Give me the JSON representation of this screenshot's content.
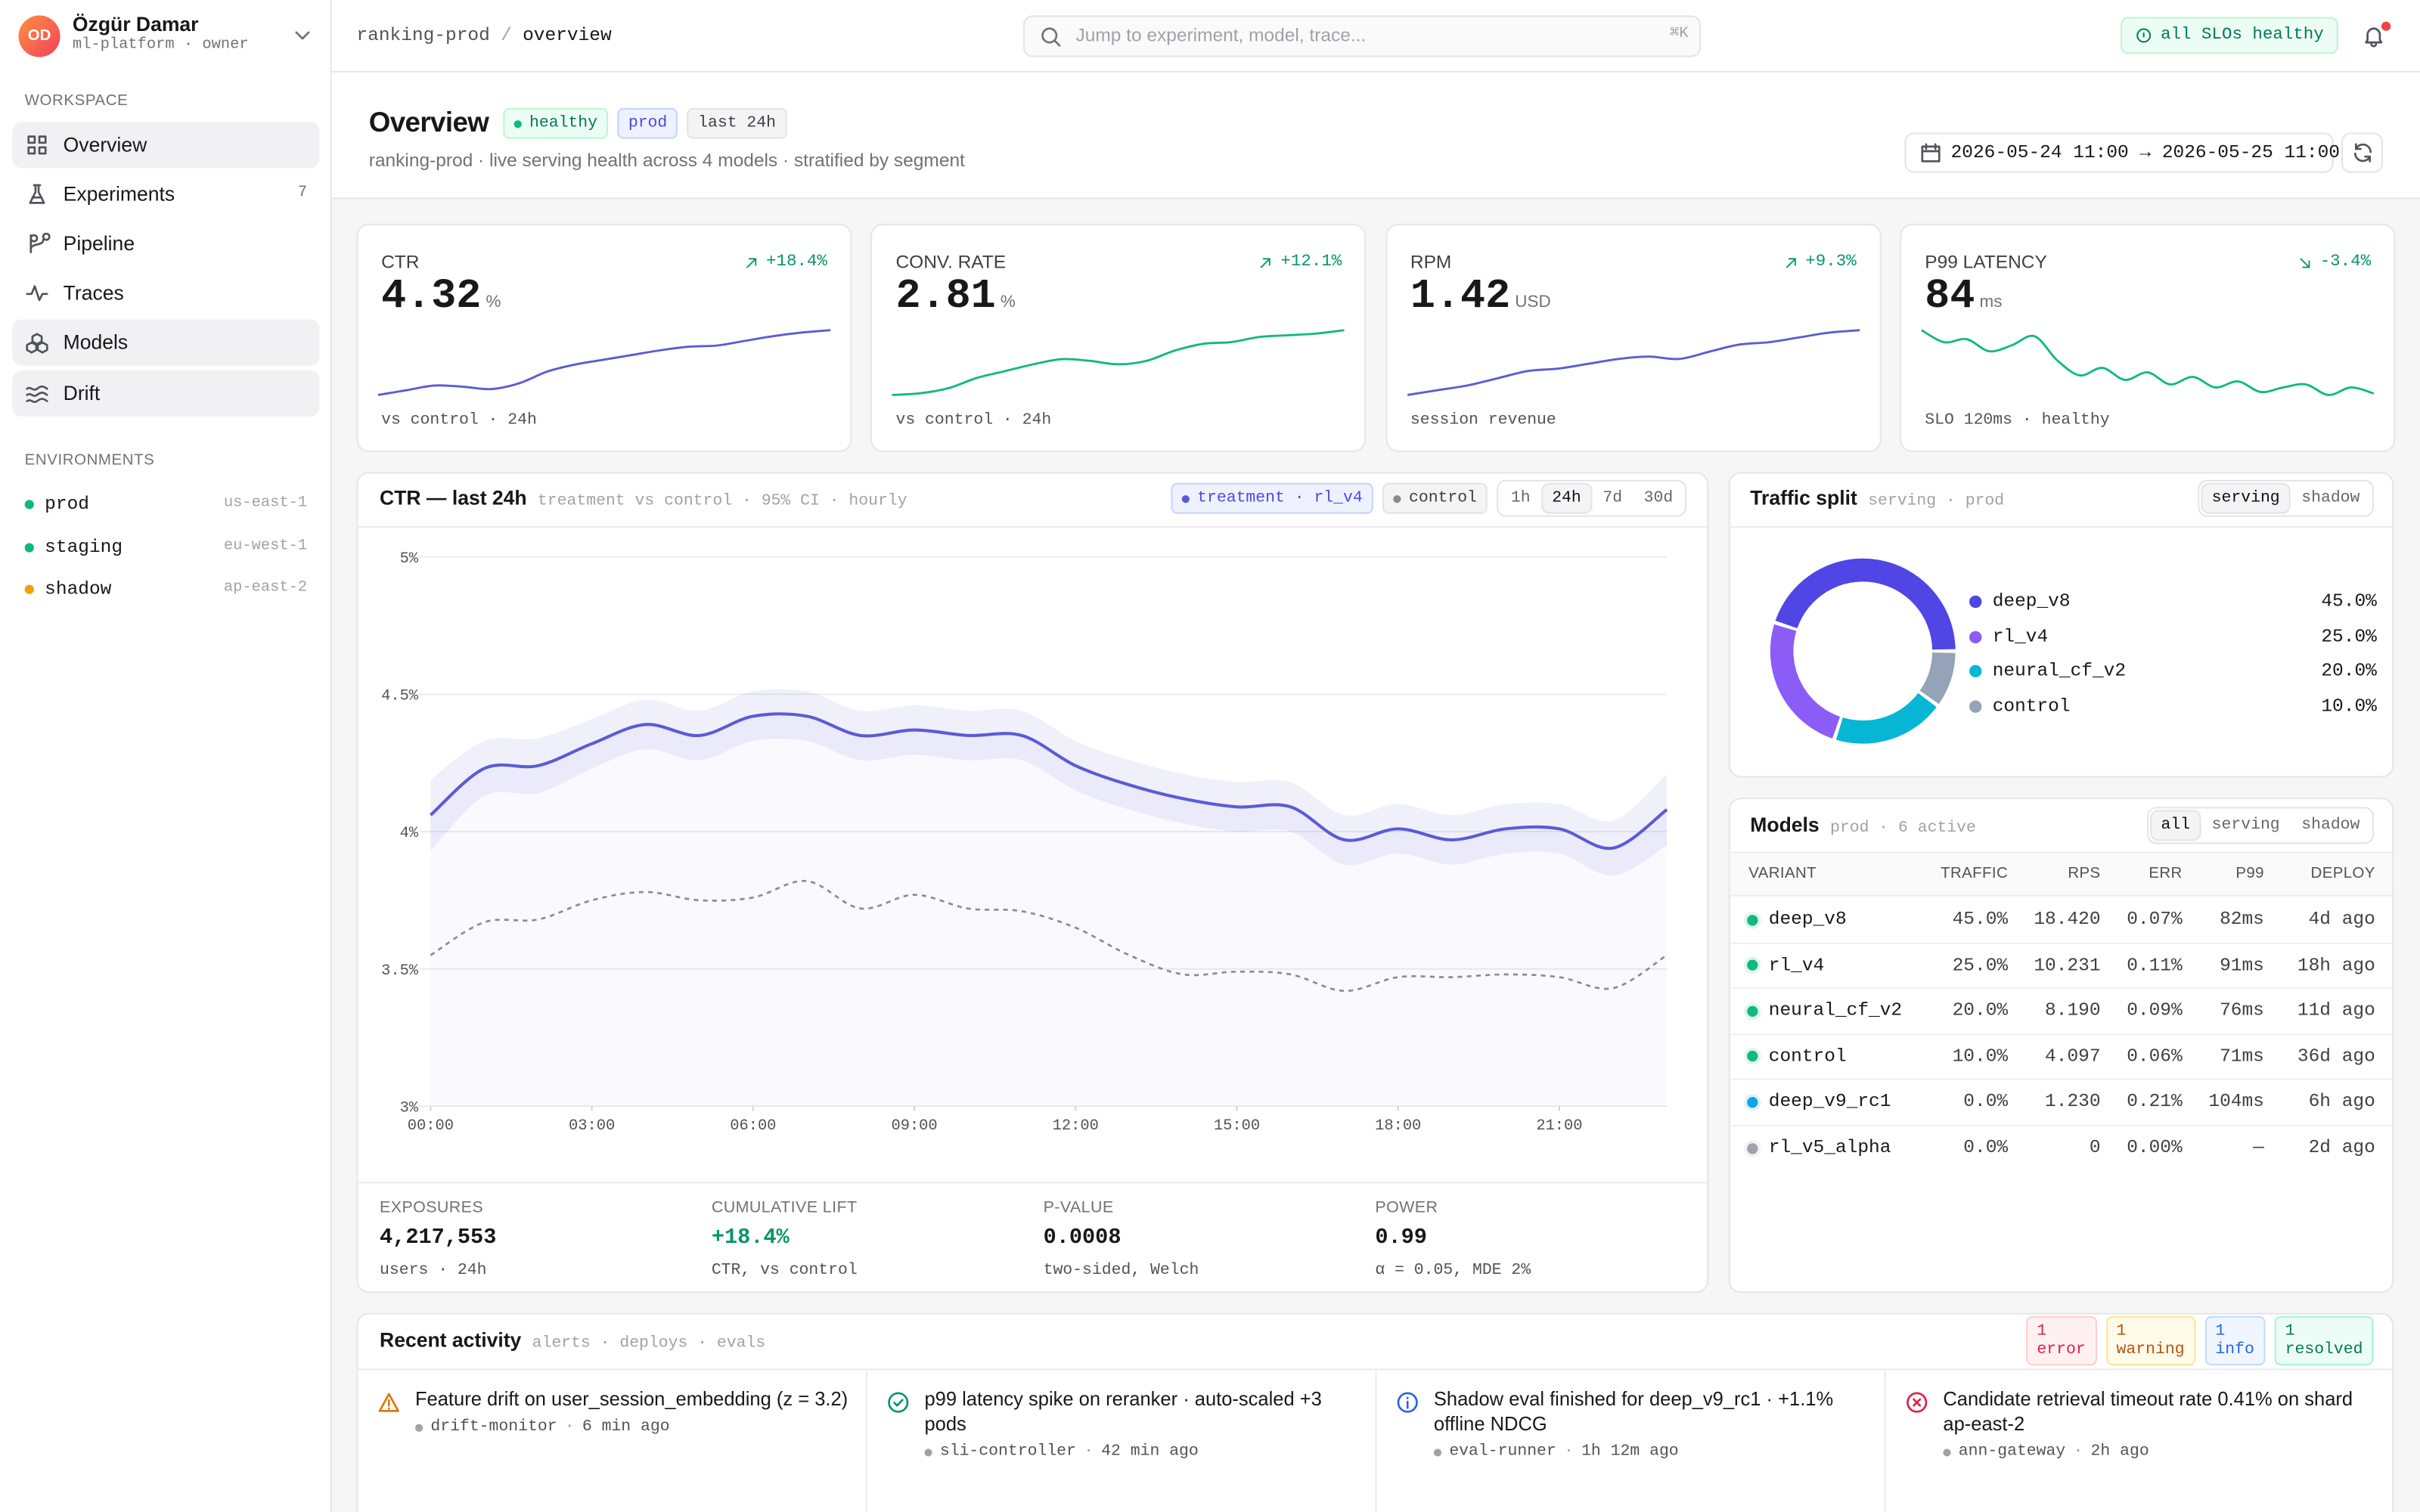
{
  "user": {
    "initials": "OD",
    "name": "Özgür Damar",
    "role": "ml-platform · owner"
  },
  "sidebar": {
    "workspace_label": "WORKSPACE",
    "nav": [
      {
        "label": "Overview",
        "active": true
      },
      {
        "label": "Experiments",
        "count": 7
      },
      {
        "label": "Pipeline"
      },
      {
        "label": "Traces"
      },
      {
        "label": "Models",
        "active": true
      },
      {
        "label": "Drift",
        "active": true
      }
    ],
    "environments_label": "ENVIRONMENTS",
    "environments": [
      {
        "name": "prod",
        "region": "us-east-1",
        "color": "#10b981"
      },
      {
        "name": "staging",
        "region": "eu-west-1",
        "color": "#10b981"
      },
      {
        "name": "shadow",
        "region": "ap-east-2",
        "color": "#f59e0b"
      }
    ]
  },
  "topbar": {
    "breadcrumb": [
      "ranking-prod",
      "overview"
    ],
    "separator": "/",
    "search_placeholder": "Jump to experiment, model, trace...",
    "search_shortcut": "⌘K",
    "status": "all SLOs healthy"
  },
  "header": {
    "title": "Overview",
    "badges": [
      {
        "label": "healthy",
        "kind": "ok"
      },
      {
        "label": "prod",
        "kind": "env"
      },
      {
        "label": "last 24h",
        "kind": "neutral"
      }
    ],
    "subtitle": "ranking-prod · live serving health across 4 models · stratified by segment",
    "date_range": "2026-05-24 11:00 → 2026-05-25 11:00"
  },
  "kpis": [
    {
      "label": "CTR",
      "value": 4.32,
      "unit": "%",
      "delta": "+18.4%",
      "trend": "up",
      "footnote": "vs control · 24h",
      "color": "#5b5bd6",
      "spark": [
        3.62,
        3.66,
        3.7,
        3.69,
        3.67,
        3.72,
        3.82,
        3.88,
        3.92,
        3.96,
        4.0,
        4.03,
        4.04,
        4.08,
        4.12,
        4.15,
        4.17
      ]
    },
    {
      "label": "CONV. RATE",
      "value": 2.81,
      "unit": "%",
      "delta": "+12.1%",
      "trend": "up",
      "footnote": "vs control · 24h",
      "color": "#10b981",
      "spark": [
        2.42,
        2.43,
        2.46,
        2.52,
        2.56,
        2.6,
        2.63,
        2.62,
        2.6,
        2.62,
        2.68,
        2.72,
        2.73,
        2.76,
        2.77,
        2.78,
        2.8
      ]
    },
    {
      "label": "RPM",
      "value": 1.42,
      "unit": "USD",
      "delta": "+9.3%",
      "trend": "up",
      "footnote": "session revenue",
      "color": "#5b5bd6",
      "spark": [
        1.2,
        1.22,
        1.24,
        1.27,
        1.3,
        1.31,
        1.33,
        1.35,
        1.36,
        1.35,
        1.38,
        1.41,
        1.42,
        1.44,
        1.46,
        1.47
      ]
    },
    {
      "label": "P99 LATENCY",
      "value": 84,
      "unit": "ms",
      "delta": "-3.4%",
      "trend": "down",
      "footnote": "SLO 120ms · healthy",
      "color": "#10b981",
      "spark": [
        118,
        110,
        112,
        104,
        108,
        114,
        98,
        88,
        93,
        85,
        90,
        82,
        87,
        80,
        84,
        77,
        80,
        82,
        75,
        80,
        76
      ]
    }
  ],
  "chart_data": [
    {
      "type": "line",
      "title": "CTR — last 24h",
      "subtitle": "treatment vs control · 95% CI · hourly",
      "ranges": [
        "1h",
        "24h",
        "7d",
        "30d"
      ],
      "selected_range": "24h",
      "x": [
        0,
        1,
        2,
        3,
        4,
        5,
        6,
        7,
        8,
        9,
        10,
        11,
        12,
        13,
        14,
        15,
        16,
        17,
        18,
        19,
        20,
        21,
        22,
        23
      ],
      "xlim": [
        0,
        23
      ],
      "xticks": [
        {
          "value": 0,
          "label": "00:00"
        },
        {
          "value": 3,
          "label": "03:00"
        },
        {
          "value": 6,
          "label": "06:00"
        },
        {
          "value": 9,
          "label": "09:00"
        },
        {
          "value": 12,
          "label": "12:00"
        },
        {
          "value": 15,
          "label": "15:00"
        },
        {
          "value": 18,
          "label": "18:00"
        },
        {
          "value": 21,
          "label": "21:00"
        }
      ],
      "ylim": [
        3,
        5
      ],
      "yticks": [
        {
          "value": 3,
          "label": "3%"
        },
        {
          "value": 3.5,
          "label": "3.5%"
        },
        {
          "value": 4,
          "label": "4%"
        },
        {
          "value": 4.5,
          "label": "4.5%"
        },
        {
          "value": 5,
          "label": "5%"
        }
      ],
      "grid": true,
      "series": [
        {
          "name": "treatment · rl_v4",
          "color": "#5b5bd6",
          "values": [
            4.06,
            4.23,
            4.24,
            4.32,
            4.39,
            4.35,
            4.42,
            4.42,
            4.35,
            4.37,
            4.35,
            4.35,
            4.24,
            4.17,
            4.12,
            4.09,
            4.09,
            3.97,
            4.01,
            3.97,
            4.01,
            4.01,
            3.94,
            4.08
          ],
          "ci_low": [
            3.93,
            4.13,
            4.14,
            4.23,
            4.3,
            4.26,
            4.33,
            4.33,
            4.26,
            4.28,
            4.26,
            4.26,
            4.15,
            4.08,
            4.03,
            4.0,
            4.0,
            3.88,
            3.92,
            3.88,
            3.92,
            3.92,
            3.84,
            3.95
          ],
          "ci_high": [
            4.19,
            4.33,
            4.34,
            4.41,
            4.48,
            4.44,
            4.51,
            4.51,
            4.44,
            4.46,
            4.44,
            4.44,
            4.33,
            4.26,
            4.21,
            4.18,
            4.18,
            4.06,
            4.1,
            4.06,
            4.1,
            4.1,
            4.04,
            4.21
          ]
        },
        {
          "name": "control",
          "color": "#8a8a93",
          "dashed": true,
          "values": [
            3.55,
            3.67,
            3.68,
            3.75,
            3.78,
            3.75,
            3.76,
            3.82,
            3.72,
            3.77,
            3.72,
            3.71,
            3.65,
            3.55,
            3.48,
            3.49,
            3.48,
            3.42,
            3.47,
            3.47,
            3.48,
            3.47,
            3.43,
            3.55
          ]
        }
      ],
      "stats": [
        {
          "label": "EXPOSURES",
          "value": "4,217,553",
          "note": "users · 24h"
        },
        {
          "label": "CUMULATIVE LIFT",
          "value": "+18.4%",
          "note": "CTR, vs control",
          "color": "#059669"
        },
        {
          "label": "P-VALUE",
          "value": "0.0008",
          "note": "two-sided, Welch"
        },
        {
          "label": "POWER",
          "value": "0.99",
          "note": "α = 0.05, MDE 2%"
        }
      ]
    },
    {
      "type": "pie",
      "donut": true,
      "title": "Traffic split",
      "subtitle": "serving · prod",
      "toggle": [
        "serving",
        "shadow"
      ],
      "selected": "serving",
      "categories": [
        "deep_v8",
        "rl_v4",
        "neural_cf_v2",
        "control"
      ],
      "values": [
        45,
        25,
        20,
        10
      ],
      "value_labels": [
        "45.0%",
        "25.0%",
        "20.0%",
        "10.0%"
      ],
      "colors": [
        "#4f46e5",
        "#8b5cf6",
        "#06b6d4",
        "#94a3b8"
      ]
    }
  ],
  "models": {
    "title": "Models",
    "subtitle": "prod · 6 active",
    "toggle": [
      "all",
      "serving",
      "shadow"
    ],
    "selected": "all",
    "columns": [
      "VARIANT",
      "TRAFFIC",
      "RPS",
      "ERR",
      "P99",
      "DEPLOY"
    ],
    "rows": [
      [
        "deep_v8",
        "45.0%",
        "18.420",
        "0.07%",
        "82ms",
        "4d ago"
      ],
      [
        "rl_v4",
        "25.0%",
        "10.231",
        "0.11%",
        "91ms",
        "18h ago"
      ],
      [
        "neural_cf_v2",
        "20.0%",
        "8.190",
        "0.09%",
        "76ms",
        "11d ago"
      ],
      [
        "control",
        "10.0%",
        "4.097",
        "0.06%",
        "71ms",
        "36d ago"
      ],
      [
        "deep_v9_rc1",
        "0.0%",
        "1.230",
        "0.21%",
        "104ms",
        "6h ago"
      ],
      [
        "rl_v5_alpha",
        "0.0%",
        "0",
        "0.00%",
        "—",
        "2d ago"
      ]
    ],
    "status_colors": [
      "#10b981",
      "#10b981",
      "#10b981",
      "#10b981",
      "#0ea5e9",
      "#a1a1aa"
    ]
  },
  "activity": {
    "title": "Recent activity",
    "tags": "alerts · deploys · evals",
    "separator": "·",
    "counts": [
      {
        "label": "1 error",
        "kind": "error"
      },
      {
        "label": "1 warning",
        "kind": "warning"
      },
      {
        "label": "1 info",
        "kind": "info"
      },
      {
        "label": "1 resolved",
        "kind": "resolved"
      }
    ],
    "items": [
      {
        "kind": "warning",
        "text": "Feature drift on user_session_embedding (z = 3.2)",
        "source": "drift-monitor",
        "time": "6 min ago"
      },
      {
        "kind": "resolved",
        "text": "p99 latency spike on reranker · auto-scaled +3 pods",
        "source": "sli-controller",
        "time": "42 min ago"
      },
      {
        "kind": "info",
        "text": "Shadow eval finished for deep_v9_rc1 · +1.1% offline NDCG",
        "source": "eval-runner",
        "time": "1h 12m ago"
      },
      {
        "kind": "error",
        "text": "Candidate retrieval timeout rate 0.41% on shard ap-east-2",
        "source": "ann-gateway",
        "time": "2h ago"
      }
    ]
  }
}
